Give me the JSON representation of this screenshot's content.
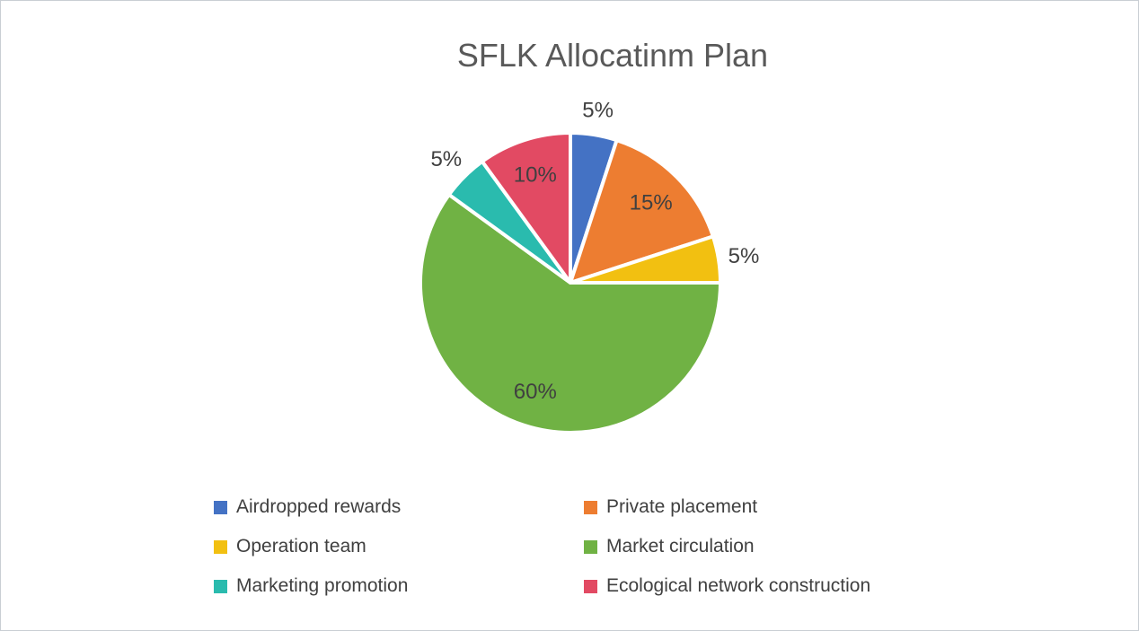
{
  "chart_data": {
    "type": "pie",
    "title": "SFLK Allocatinm Plan",
    "title_color": "#595959",
    "label_color": "#404040",
    "legend_color": "#404040",
    "legend_position": "bottom",
    "legend_columns": 2,
    "start_angle_deg": 0,
    "direction": "clockwise",
    "slice_border_color": "#ffffff",
    "slices": [
      {
        "label": "Airdropped rewards",
        "value": 5,
        "display": "5%",
        "color": "#4472C4",
        "label_placement": "outside"
      },
      {
        "label": "Private placement",
        "value": 15,
        "display": "15%",
        "color": "#ED7D31",
        "label_placement": "inside"
      },
      {
        "label": "Operation team",
        "value": 5,
        "display": "5%",
        "color": "#F2C011",
        "label_placement": "outside"
      },
      {
        "label": "Market circulation",
        "value": 60,
        "display": "60%",
        "color": "#70B244",
        "label_placement": "inside"
      },
      {
        "label": "Marketing promotion",
        "value": 5,
        "display": "5%",
        "color": "#2ABBAE",
        "label_placement": "outside"
      },
      {
        "label": "Ecological network construction",
        "value": 10,
        "display": "10%",
        "color": "#E24A63",
        "label_placement": "inside"
      }
    ]
  }
}
